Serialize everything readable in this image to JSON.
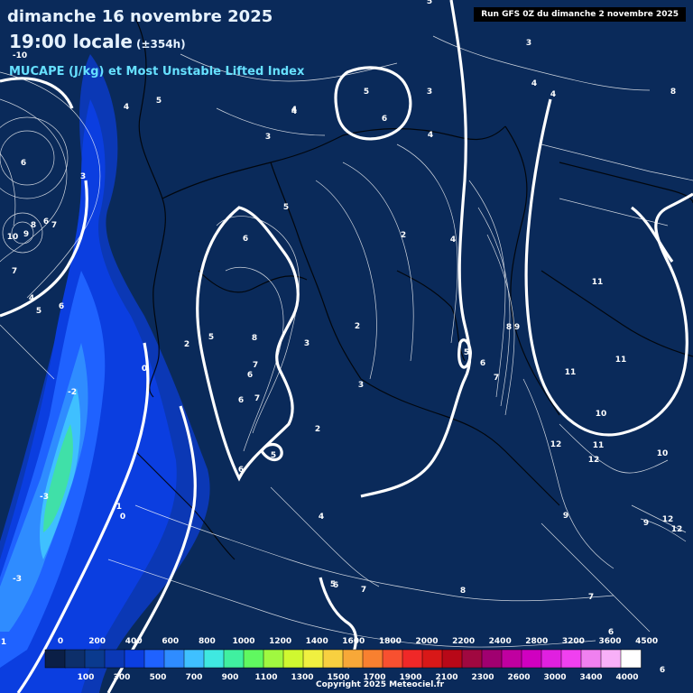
{
  "header": {
    "date": "dimanche 16 novembre 2025",
    "time": "19:00 locale",
    "range": "(±354h)",
    "field": "MUCAPE (J/kg) et Most Unstable Lifted Index"
  },
  "run_label": "Run GFS 0Z du dimanche 2 novembre 2025",
  "copyright": "Copyright 2025 Meteociel.fr",
  "legend": {
    "top_labels": [
      "0",
      "200",
      "400",
      "600",
      "800",
      "1000",
      "1200",
      "1400",
      "1600",
      "1800",
      "2000",
      "2200",
      "2400",
      "2800",
      "3200",
      "3600",
      "4500"
    ],
    "bottom_labels": [
      "100",
      "300",
      "500",
      "700",
      "900",
      "1100",
      "1300",
      "1500",
      "1700",
      "1900",
      "2100",
      "2300",
      "2600",
      "3000",
      "3400",
      "4000"
    ],
    "colors": [
      "#0b1f46",
      "#0d2f6a",
      "#0a3a8e",
      "#0b38b5",
      "#0b3ee0",
      "#1f62ff",
      "#2f8cff",
      "#3fc0ff",
      "#3fe8e0",
      "#40f0a0",
      "#60f860",
      "#a0f840",
      "#d0f830",
      "#f0f040",
      "#f8d040",
      "#f8a838",
      "#f88030",
      "#f85030",
      "#f02828",
      "#d81818",
      "#b80818",
      "#a00840",
      "#a00070",
      "#c000a0",
      "#d000c0",
      "#e020e0",
      "#f040f0",
      "#f080f0",
      "#f8b0f8",
      "#ffffff"
    ]
  },
  "contour_labels": [
    {
      "t": "-10"
    },
    {
      "t": "6"
    },
    {
      "t": "10"
    },
    {
      "t": "9"
    },
    {
      "t": "8"
    },
    {
      "t": "7"
    },
    {
      "t": "6"
    },
    {
      "t": "7"
    },
    {
      "t": "4"
    },
    {
      "t": "5"
    },
    {
      "t": "6"
    },
    {
      "t": "-2"
    },
    {
      "t": "-3"
    },
    {
      "t": "-3"
    },
    {
      "t": "-1"
    },
    {
      "t": "0"
    },
    {
      "t": "1"
    },
    {
      "t": "0"
    },
    {
      "t": "3"
    },
    {
      "t": "4"
    },
    {
      "t": "5"
    },
    {
      "t": "4"
    },
    {
      "t": "3"
    },
    {
      "t": "5"
    },
    {
      "t": "6"
    },
    {
      "t": "5"
    },
    {
      "t": "6"
    },
    {
      "t": "2"
    },
    {
      "t": "5"
    },
    {
      "t": "8"
    },
    {
      "t": "6"
    },
    {
      "t": "7"
    },
    {
      "t": "6"
    },
    {
      "t": "7"
    },
    {
      "t": "6"
    },
    {
      "t": "5"
    },
    {
      "t": "2"
    },
    {
      "t": "3"
    },
    {
      "t": "2"
    },
    {
      "t": "3"
    },
    {
      "t": "2"
    },
    {
      "t": "4"
    },
    {
      "t": "5"
    },
    {
      "t": "6"
    },
    {
      "t": "7"
    },
    {
      "t": "8"
    },
    {
      "t": "9"
    },
    {
      "t": "4"
    },
    {
      "t": "4"
    },
    {
      "t": "3"
    },
    {
      "t": "4"
    },
    {
      "t": "8"
    },
    {
      "t": "11"
    },
    {
      "t": "11"
    },
    {
      "t": "11"
    },
    {
      "t": "10"
    },
    {
      "t": "12"
    },
    {
      "t": "11"
    },
    {
      "t": "12"
    },
    {
      "t": "10"
    },
    {
      "t": "9"
    },
    {
      "t": "12"
    },
    {
      "t": "12"
    },
    {
      "t": "9"
    },
    {
      "t": "8"
    },
    {
      "t": "7"
    },
    {
      "t": "6"
    },
    {
      "t": "5"
    },
    {
      "t": "4"
    },
    {
      "t": "7"
    },
    {
      "t": "6"
    },
    {
      "t": "6"
    },
    {
      "t": "5"
    },
    {
      "t": "4"
    },
    {
      "t": "3"
    }
  ]
}
